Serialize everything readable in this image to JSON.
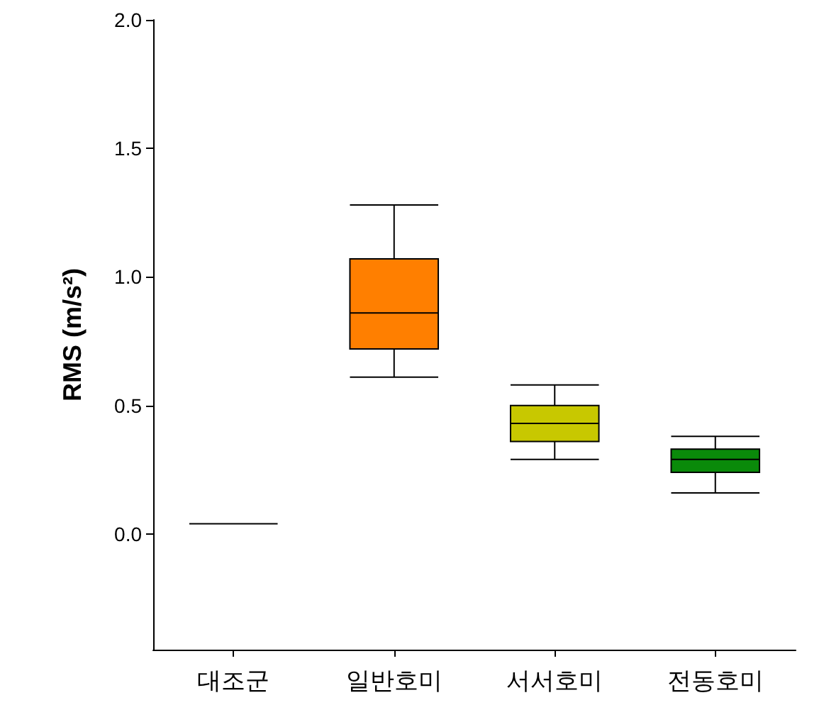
{
  "chart_data": {
    "type": "box",
    "ylabel": "RMS (m/s²)",
    "categories": [
      "대조군",
      "일반호미",
      "서서호미",
      "전동호미"
    ],
    "boxes": [
      {
        "low": 0.04,
        "q1": 0.04,
        "median": 0.04,
        "q3": 0.04,
        "high": 0.04
      },
      {
        "low": 0.61,
        "q1": 0.72,
        "median": 0.86,
        "q3": 1.07,
        "high": 1.28
      },
      {
        "low": 0.29,
        "q1": 0.36,
        "median": 0.43,
        "q3": 0.5,
        "high": 0.58
      },
      {
        "low": 0.16,
        "q1": 0.24,
        "median": 0.29,
        "q3": 0.33,
        "high": 0.38
      }
    ],
    "colors": [
      "#000000",
      "#ff7f00",
      "#c8c800",
      "#0a8a0a"
    ],
    "ylim": [
      -0.45,
      2.0
    ],
    "yticks": [
      {
        "value": 0,
        "label": "0.0"
      },
      0.5,
      {
        "value": 1,
        "label": "1.0"
      },
      1.5,
      {
        "value": 2,
        "label": "2.0"
      }
    ]
  }
}
